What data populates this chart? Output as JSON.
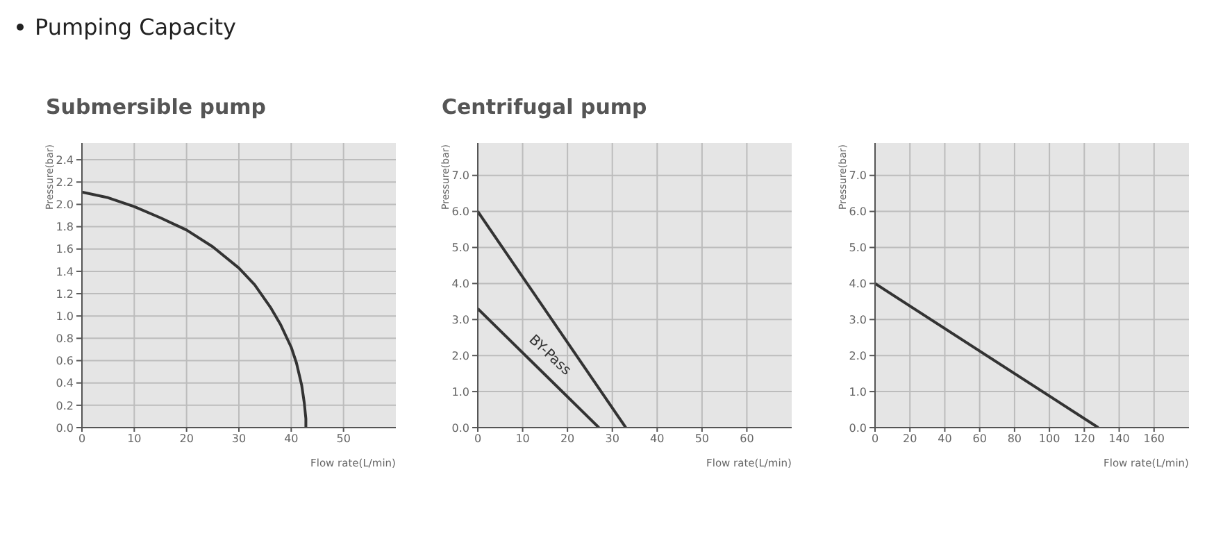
{
  "chart_data": [
    {
      "type": "other",
      "title": "Pumping Capacity"
    },
    {
      "type": "line",
      "title": "Submersible pump",
      "xlabel": "Flow rate(L/min)",
      "ylabel": "Pressure(bar)",
      "grid": true,
      "x": [
        0,
        5,
        10,
        15,
        20,
        25,
        30,
        33,
        36,
        38,
        40,
        41,
        42,
        42.5,
        42.8,
        42.8
      ],
      "series": [
        {
          "color": "#333333",
          "values": [
            2.11,
            2.06,
            1.98,
            1.88,
            1.77,
            1.62,
            1.43,
            1.28,
            1.08,
            0.92,
            0.72,
            0.58,
            0.38,
            0.22,
            0.08,
            0
          ]
        }
      ],
      "xlim": [
        0,
        60
      ],
      "xticks": [
        0,
        10,
        20,
        30,
        40,
        50
      ],
      "ylim": [
        0,
        2.55
      ],
      "yticks": [
        {
          "value": 0,
          "label": "0.0"
        },
        0.2,
        0.4,
        0.6,
        0.8,
        {
          "value": 1,
          "label": "1.0"
        },
        1.2,
        1.4,
        1.6,
        1.8,
        {
          "value": 2,
          "label": "2.0"
        },
        2.2,
        2.4
      ]
    },
    {
      "type": "line",
      "title": "Centrifugal pump",
      "xlabel": "Flow rate(L/min)",
      "ylabel": "Pressure(bar)",
      "grid": true,
      "series": [
        {
          "color": "#333333",
          "x": [
            0,
            33
          ],
          "values": [
            6.0,
            0
          ]
        },
        {
          "name": "BY-Pass",
          "color": "#333333",
          "x": [
            0,
            27
          ],
          "values": [
            3.3,
            0
          ]
        }
      ],
      "xlim": [
        0,
        70
      ],
      "xticks": [
        0,
        10,
        20,
        30,
        40,
        50,
        60
      ],
      "ylim": [
        0,
        7.9
      ],
      "yticks": [
        {
          "value": 0,
          "label": "0.0"
        },
        {
          "value": 1,
          "label": "1.0"
        },
        {
          "value": 2,
          "label": "2.0"
        },
        {
          "value": 3,
          "label": "3.0"
        },
        {
          "value": 4,
          "label": "4.0"
        },
        {
          "value": 5,
          "label": "5.0"
        },
        {
          "value": 6,
          "label": "6.0"
        },
        {
          "value": 7,
          "label": "7.0"
        }
      ]
    },
    {
      "type": "line",
      "xlabel": "Flow rate(L/min)",
      "ylabel": "Pressure(bar)",
      "grid": true,
      "series": [
        {
          "color": "#333333",
          "x": [
            0,
            128
          ],
          "values": [
            4.0,
            0
          ]
        }
      ],
      "xlim": [
        0,
        180
      ],
      "xticks": [
        0,
        20,
        40,
        60,
        80,
        100,
        120,
        140,
        160
      ],
      "ylim": [
        0,
        7.9
      ],
      "yticks": [
        {
          "value": 0,
          "label": "0.0"
        },
        {
          "value": 1,
          "label": "1.0"
        },
        {
          "value": 2,
          "label": "2.0"
        },
        {
          "value": 3,
          "label": "3.0"
        },
        {
          "value": 4,
          "label": "4.0"
        },
        {
          "value": 5,
          "label": "5.0"
        },
        {
          "value": 6,
          "label": "6.0"
        },
        {
          "value": 7,
          "label": "7.0"
        }
      ]
    }
  ]
}
